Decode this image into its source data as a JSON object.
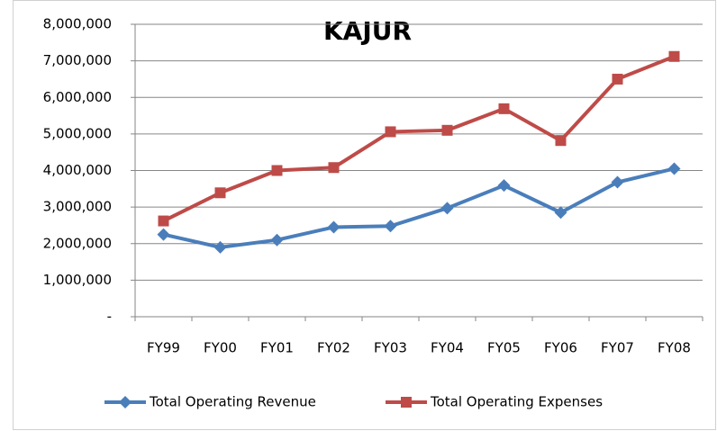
{
  "chart_data": {
    "type": "line",
    "title": "KAJUR",
    "categories": [
      "FY99",
      "FY00",
      "FY01",
      "FY02",
      "FY03",
      "FY04",
      "FY05",
      "FY06",
      "FY07",
      "FY08"
    ],
    "series": [
      {
        "name": "Total Operating Revenue",
        "color": "#4a7ebb",
        "marker": "diamond",
        "values": [
          2250000,
          1900000,
          2100000,
          2450000,
          2480000,
          2970000,
          3590000,
          2850000,
          3680000,
          4050000
        ]
      },
      {
        "name": "Total Operating Expenses",
        "color": "#be4b48",
        "marker": "square",
        "values": [
          2620000,
          3390000,
          4000000,
          4080000,
          5060000,
          5100000,
          5690000,
          4820000,
          6500000,
          7120000
        ]
      }
    ],
    "ylim": [
      0,
      8000000
    ],
    "yticks": [
      {
        "value": 0,
        "label": "-"
      },
      {
        "value": 1000000,
        "label": "1,000,000"
      },
      {
        "value": 2000000,
        "label": "2,000,000"
      },
      {
        "value": 3000000,
        "label": "3,000,000"
      },
      {
        "value": 4000000,
        "label": "4,000,000"
      },
      {
        "value": 5000000,
        "label": "5,000,000"
      },
      {
        "value": 6000000,
        "label": "6,000,000"
      },
      {
        "value": 7000000,
        "label": "7,000,000"
      },
      {
        "value": 8000000,
        "label": "8,000,000"
      }
    ],
    "grid": true,
    "legend": "bottom"
  }
}
